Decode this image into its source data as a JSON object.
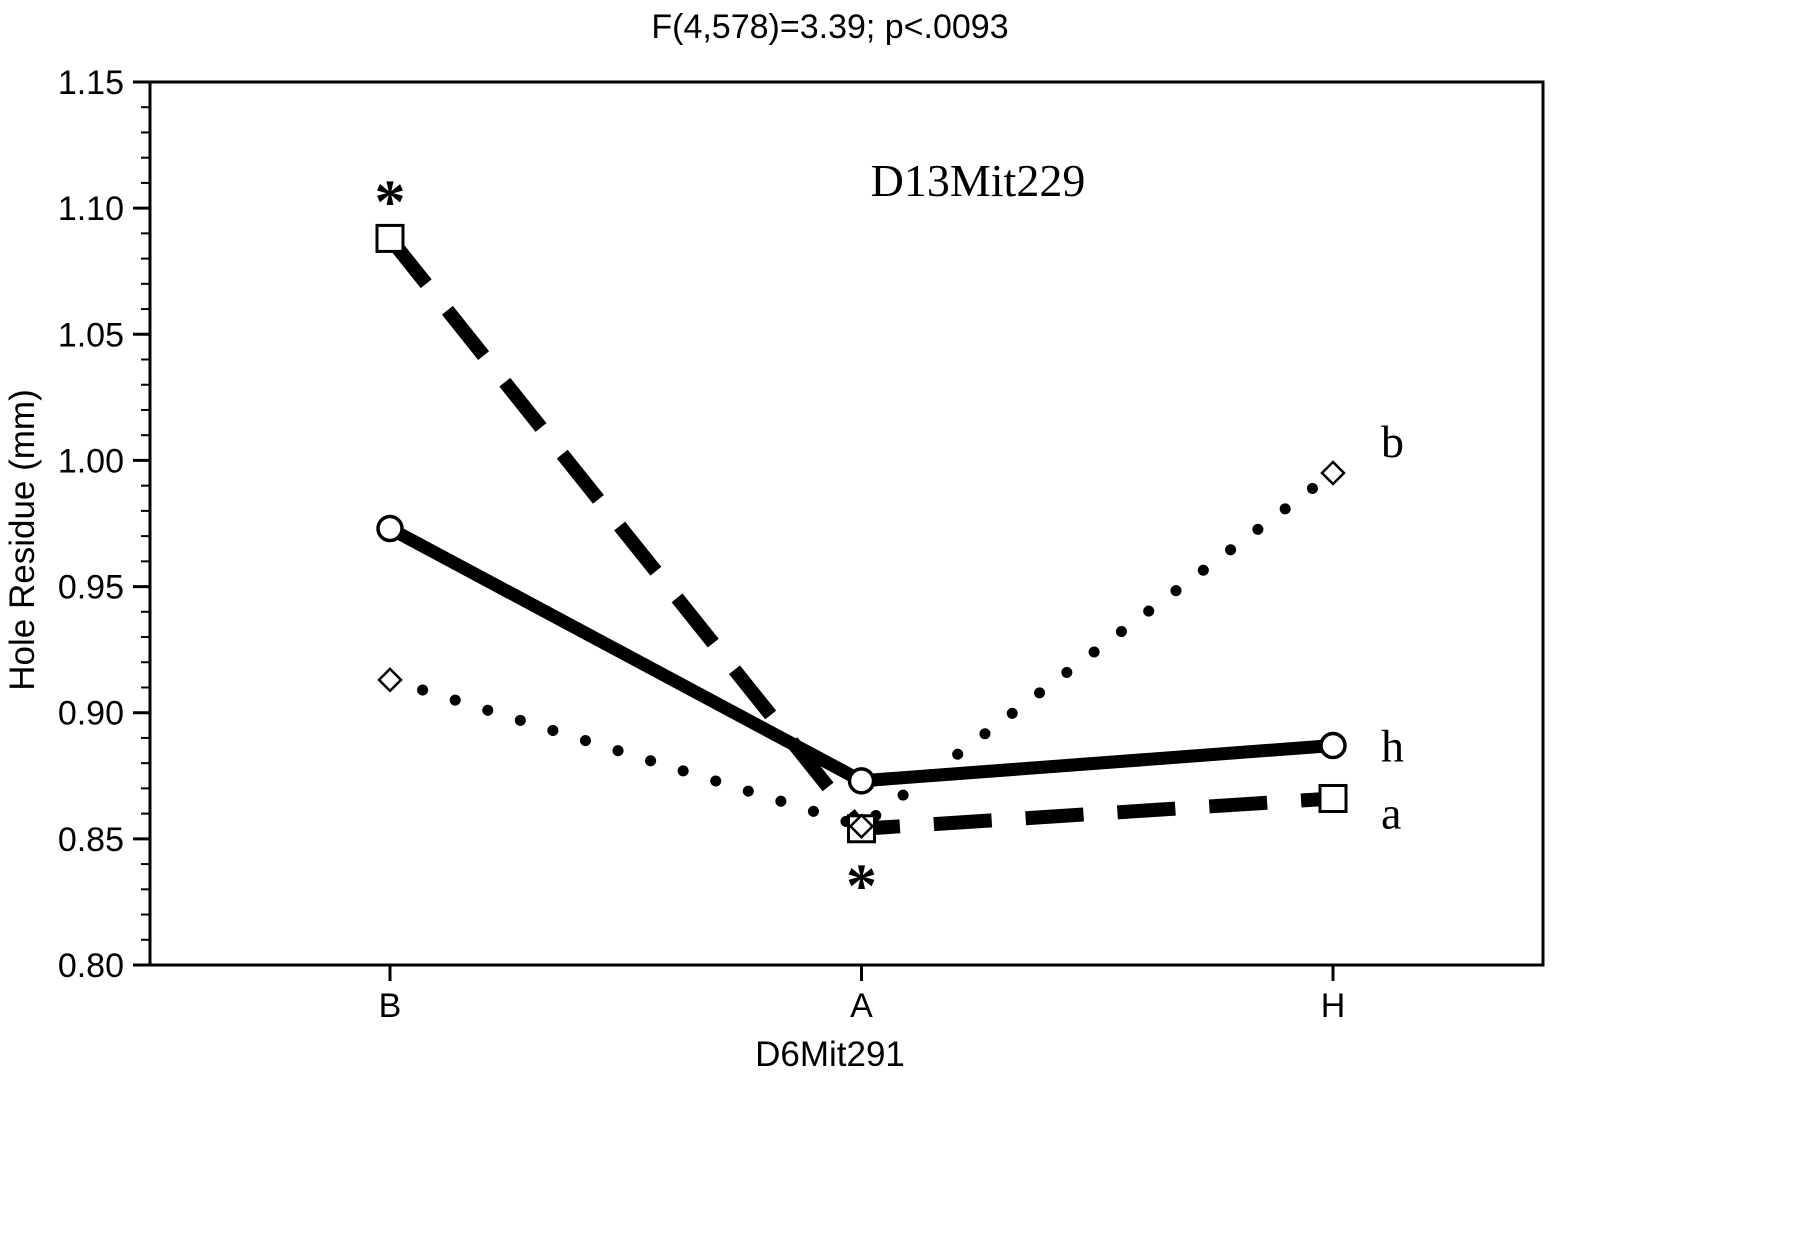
{
  "title": "F(4,578)=3.39; p<.0093",
  "chart_data": {
    "type": "line",
    "categories": [
      "B",
      "A",
      "H"
    ],
    "xlabel": "D6Mit291",
    "ylabel": "Hole Residue (mm)",
    "annotation": "D13Mit229",
    "ylim": [
      0.8,
      1.15
    ],
    "ytick_step": 0.05,
    "ytick_labels": [
      "0.80",
      "0.85",
      "0.90",
      "0.95",
      "1.00",
      "1.05",
      "1.10",
      "1.15"
    ],
    "grid": false,
    "legend_position": "right-end-labels",
    "series": [
      {
        "name": "a",
        "marker": "square",
        "line_style": "dashed",
        "values": [
          1.088,
          0.854,
          0.866
        ]
      },
      {
        "name": "h",
        "marker": "circle",
        "line_style": "solid",
        "values": [
          0.973,
          0.873,
          0.887
        ]
      },
      {
        "name": "b",
        "marker": "diamond",
        "line_style": "dotted",
        "values": [
          0.913,
          0.855,
          0.995
        ]
      }
    ],
    "significance_markers": [
      {
        "text": "*",
        "category": "B",
        "value": 1.103
      },
      {
        "text": "*",
        "category": "A",
        "value": 0.832
      }
    ],
    "line_color": "#000000",
    "background_color": "#ffffff"
  }
}
